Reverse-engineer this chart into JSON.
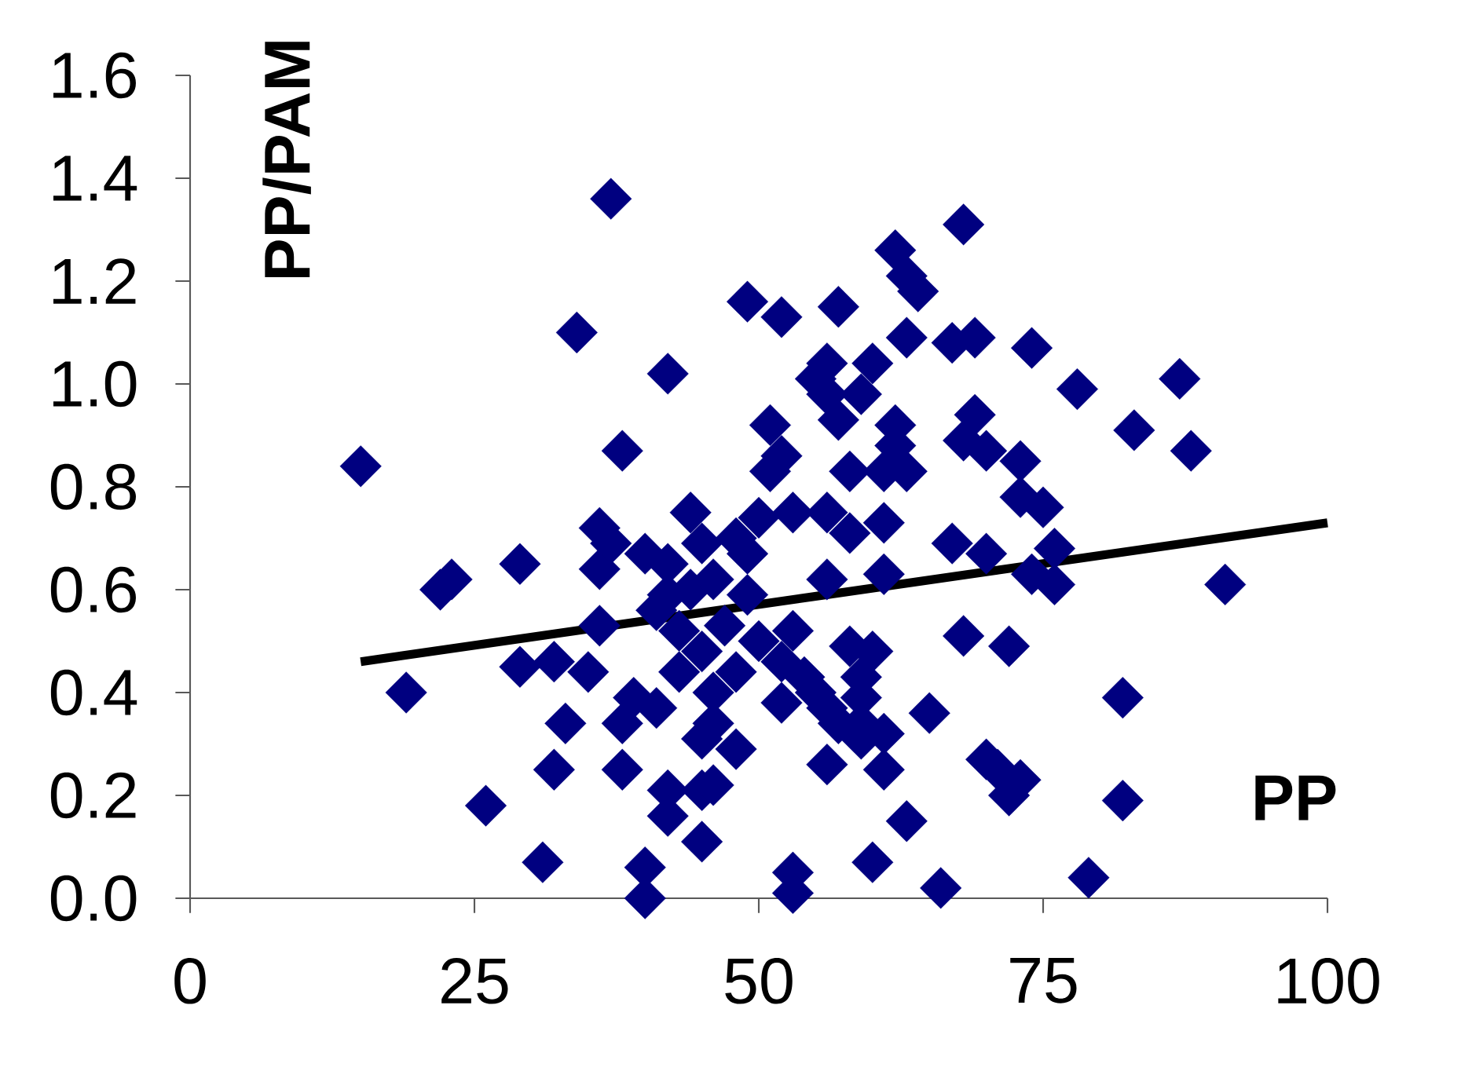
{
  "chart_data": {
    "type": "scatter",
    "xlabel": "PP",
    "ylabel": "PP/PAM",
    "xlim": [
      0,
      100
    ],
    "ylim": [
      0,
      1.6
    ],
    "xticks": [
      0,
      25,
      50,
      75,
      100
    ],
    "yticks": [
      {
        "value": 0,
        "label": "0.0"
      },
      {
        "value": 0.2,
        "label": "0.2"
      },
      {
        "value": 0.4,
        "label": "0.4"
      },
      {
        "value": 0.6,
        "label": "0.6"
      },
      {
        "value": 0.8,
        "label": "0.8"
      },
      {
        "value": 1.0,
        "label": "1.0"
      },
      {
        "value": 1.2,
        "label": "1.2"
      },
      {
        "value": 1.4,
        "label": "1.4"
      },
      {
        "value": 1.6,
        "label": "1.6"
      }
    ],
    "grid": false,
    "series": [
      {
        "color": "#000080",
        "marker": "diamond",
        "x": [
          15,
          19,
          22,
          23,
          26,
          29,
          29,
          31,
          32,
          32,
          33,
          34,
          35,
          36,
          36,
          36,
          37,
          37,
          38,
          38,
          38,
          39,
          40,
          40,
          40,
          41,
          41,
          42,
          42,
          42,
          42,
          42,
          43,
          43,
          44,
          44,
          45,
          45,
          45,
          45,
          45,
          46,
          46,
          46,
          46,
          47,
          48,
          48,
          48,
          49,
          49,
          49,
          50,
          50,
          51,
          51,
          52,
          52,
          52,
          52,
          53,
          53,
          53,
          53,
          54,
          55,
          55,
          56,
          56,
          56,
          56,
          56,
          56,
          57,
          57,
          57,
          58,
          58,
          58,
          59,
          59,
          59,
          59,
          59,
          60,
          60,
          60,
          61,
          61,
          61,
          61,
          61,
          62,
          62,
          62,
          63,
          63,
          63,
          63,
          64,
          65,
          66,
          67,
          67,
          68,
          68,
          68,
          69,
          69,
          70,
          70,
          70,
          71,
          72,
          72,
          73,
          73,
          74,
          73,
          74,
          75,
          76,
          76,
          78,
          79,
          82,
          82,
          83,
          87,
          88,
          91
        ],
        "values": [
          0.84,
          0.4,
          0.6,
          0.62,
          0.18,
          0.65,
          0.45,
          0.07,
          0.25,
          0.46,
          0.34,
          1.1,
          0.44,
          0.72,
          0.64,
          0.53,
          1.36,
          0.69,
          0.87,
          0.34,
          0.25,
          0.39,
          0.06,
          0.0,
          0.67,
          0.56,
          0.37,
          0.21,
          1.02,
          0.16,
          0.65,
          0.59,
          0.52,
          0.44,
          0.75,
          0.6,
          0.31,
          0.11,
          0.21,
          0.69,
          0.48,
          0.4,
          0.62,
          0.22,
          0.34,
          0.53,
          0.7,
          0.44,
          0.29,
          1.16,
          0.59,
          0.67,
          0.5,
          0.74,
          0.83,
          0.92,
          1.13,
          0.38,
          0.46,
          0.86,
          0.75,
          0.05,
          0.01,
          0.52,
          0.43,
          0.4,
          1.01,
          0.62,
          0.75,
          1.04,
          0.98,
          0.26,
          0.37,
          0.34,
          1.15,
          0.93,
          0.49,
          0.83,
          0.71,
          0.39,
          0.34,
          0.43,
          0.31,
          0.98,
          0.07,
          0.48,
          1.04,
          0.73,
          0.63,
          0.25,
          0.32,
          0.83,
          1.26,
          0.92,
          0.88,
          1.21,
          0.83,
          0.15,
          1.09,
          1.18,
          0.36,
          0.02,
          1.08,
          0.69,
          1.31,
          0.51,
          0.89,
          0.94,
          1.09,
          0.87,
          0.27,
          0.67,
          0.25,
          0.2,
          0.49,
          0.85,
          0.23,
          1.07,
          0.78,
          0.63,
          0.76,
          0.68,
          0.61,
          0.99,
          0.04,
          0.39,
          0.19,
          0.91,
          1.01,
          0.87,
          0.61
        ]
      },
      {
        "type": "line",
        "color": "#000000",
        "marker": "none",
        "line_style": "solid",
        "x": [
          15,
          100
        ],
        "values": [
          0.46,
          0.73
        ]
      }
    ]
  }
}
